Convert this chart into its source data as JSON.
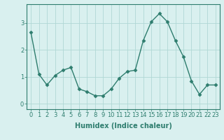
{
  "x": [
    0,
    1,
    2,
    3,
    4,
    5,
    6,
    7,
    8,
    9,
    10,
    11,
    12,
    13,
    14,
    15,
    16,
    17,
    18,
    19,
    20,
    21,
    22,
    23
  ],
  "y": [
    2.65,
    1.1,
    0.7,
    1.05,
    1.25,
    1.35,
    0.55,
    0.45,
    0.3,
    0.3,
    0.55,
    0.95,
    1.2,
    1.25,
    2.35,
    3.05,
    3.35,
    3.05,
    2.35,
    1.75,
    0.85,
    0.35,
    0.7,
    0.7
  ],
  "line_color": "#2e7d6e",
  "marker": "D",
  "markersize": 2.5,
  "linewidth": 1.0,
  "background_color": "#d9f0ef",
  "grid_color": "#b0d8d5",
  "xlabel": "Humidex (Indice chaleur)",
  "xlabel_fontsize": 7,
  "ytick_values": [
    0,
    1,
    2,
    3
  ],
  "xtick_values": [
    0,
    1,
    2,
    3,
    4,
    5,
    6,
    7,
    8,
    9,
    10,
    11,
    12,
    13,
    14,
    15,
    16,
    17,
    18,
    19,
    20,
    21,
    22,
    23
  ],
  "ylim": [
    -0.2,
    3.7
  ],
  "xlim": [
    -0.5,
    23.5
  ],
  "tick_fontsize": 6,
  "tick_color": "#2e7d6e",
  "axis_color": "#2e7d6e"
}
